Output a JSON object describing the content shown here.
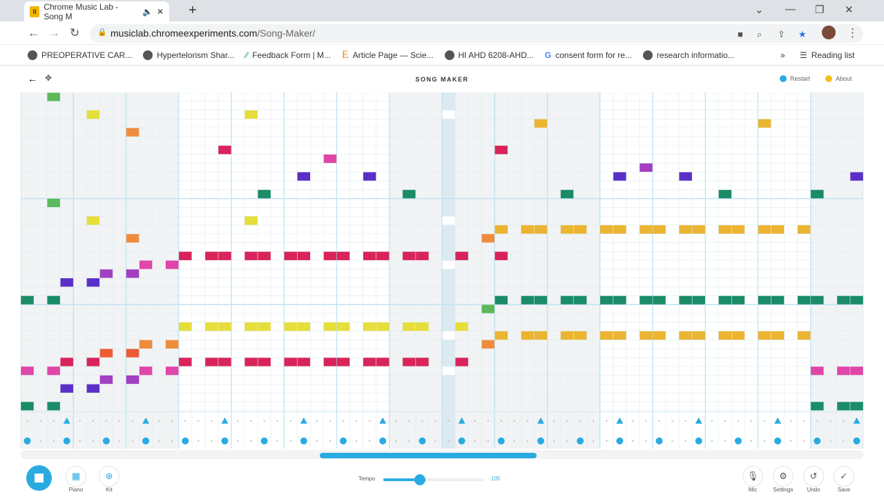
{
  "browser": {
    "tab_title": "Chrome Music Lab - Song M",
    "url_host": "musiclab.chromeexperiments.com",
    "url_path": "/Song-Maker/",
    "bookmarks": [
      "PREOPERATIVE CAR...",
      "Hypertelorism Shar...",
      "Feedback Form | M...",
      "Article Page — Scie...",
      "HI AHD 6208-AHD...",
      "consent form for re...",
      "research informatio..."
    ],
    "reading_list": "Reading list"
  },
  "app": {
    "title": "SONG MAKER",
    "restart": "Restart",
    "about": "About"
  },
  "grid": {
    "columns": 64,
    "rows": 36,
    "playhead_column": 32,
    "shaded_column_ranges": [
      [
        0,
        11
      ],
      [
        28,
        43
      ],
      [
        60,
        63
      ]
    ],
    "colors": {
      "lightgreen": "#5cb85a",
      "yellow": "#e6de3a",
      "gold": "#ebb431",
      "orange": "#ef8c3c",
      "orangered": "#ee5b35",
      "crimson": "#d8245a",
      "pink": "#e046a8",
      "purple": "#a23fc2",
      "indigo": "#5a2fc8",
      "teal": "#1b8c68"
    },
    "notes": [
      {
        "color": "lightgreen",
        "cells": [
          [
            2,
            0
          ],
          [
            2,
            12
          ],
          [
            35,
            24
          ]
        ]
      },
      {
        "color": "yellow",
        "cells": [
          [
            5,
            2
          ],
          [
            17,
            2
          ],
          [
            5,
            14
          ],
          [
            17,
            14
          ],
          [
            12,
            26
          ],
          [
            14,
            26
          ],
          [
            15,
            26
          ],
          [
            17,
            26
          ],
          [
            18,
            26
          ],
          [
            20,
            26
          ],
          [
            21,
            26
          ],
          [
            23,
            26
          ],
          [
            24,
            26
          ],
          [
            26,
            26
          ],
          [
            27,
            26
          ],
          [
            29,
            26
          ],
          [
            30,
            26
          ],
          [
            33,
            26
          ]
        ]
      },
      {
        "color": "gold",
        "cells": [
          [
            39,
            3
          ],
          [
            56,
            3
          ],
          [
            36,
            15
          ],
          [
            38,
            15
          ],
          [
            39,
            15
          ],
          [
            41,
            15
          ],
          [
            42,
            15
          ],
          [
            44,
            15
          ],
          [
            45,
            15
          ],
          [
            47,
            15
          ],
          [
            48,
            15
          ],
          [
            50,
            15
          ],
          [
            51,
            15
          ],
          [
            53,
            15
          ],
          [
            54,
            15
          ],
          [
            56,
            15
          ],
          [
            57,
            15
          ],
          [
            59,
            15
          ],
          [
            36,
            27
          ],
          [
            38,
            27
          ],
          [
            39,
            27
          ],
          [
            41,
            27
          ],
          [
            42,
            27
          ],
          [
            44,
            27
          ],
          [
            45,
            27
          ],
          [
            47,
            27
          ],
          [
            48,
            27
          ],
          [
            50,
            27
          ],
          [
            51,
            27
          ],
          [
            53,
            27
          ],
          [
            54,
            27
          ],
          [
            56,
            27
          ],
          [
            57,
            27
          ],
          [
            59,
            27
          ]
        ]
      },
      {
        "color": "orange",
        "cells": [
          [
            8,
            4
          ],
          [
            8,
            16
          ],
          [
            35,
            16
          ],
          [
            9,
            28
          ],
          [
            11,
            28
          ],
          [
            35,
            28
          ]
        ]
      },
      {
        "color": "orangered",
        "cells": [
          [
            6,
            29
          ],
          [
            8,
            29
          ]
        ]
      },
      {
        "color": "crimson",
        "cells": [
          [
            15,
            6
          ],
          [
            36,
            6
          ],
          [
            12,
            18
          ],
          [
            14,
            18
          ],
          [
            15,
            18
          ],
          [
            17,
            18
          ],
          [
            18,
            18
          ],
          [
            20,
            18
          ],
          [
            21,
            18
          ],
          [
            23,
            18
          ],
          [
            24,
            18
          ],
          [
            26,
            18
          ],
          [
            27,
            18
          ],
          [
            29,
            18
          ],
          [
            30,
            18
          ],
          [
            33,
            18
          ],
          [
            36,
            18
          ],
          [
            3,
            30
          ],
          [
            5,
            30
          ],
          [
            12,
            30
          ],
          [
            14,
            30
          ],
          [
            15,
            30
          ],
          [
            17,
            30
          ],
          [
            18,
            30
          ],
          [
            20,
            30
          ],
          [
            21,
            30
          ],
          [
            23,
            30
          ],
          [
            24,
            30
          ],
          [
            26,
            30
          ],
          [
            27,
            30
          ],
          [
            29,
            30
          ],
          [
            30,
            30
          ],
          [
            33,
            30
          ]
        ]
      },
      {
        "color": "pink",
        "cells": [
          [
            23,
            7
          ],
          [
            9,
            19
          ],
          [
            11,
            19
          ],
          [
            0,
            31
          ],
          [
            2,
            31
          ],
          [
            9,
            31
          ],
          [
            11,
            31
          ],
          [
            60,
            31
          ],
          [
            62,
            31
          ],
          [
            63,
            31
          ]
        ]
      },
      {
        "color": "purple",
        "cells": [
          [
            47,
            8
          ],
          [
            6,
            20
          ],
          [
            8,
            20
          ],
          [
            6,
            32
          ],
          [
            8,
            32
          ]
        ]
      },
      {
        "color": "indigo",
        "cells": [
          [
            21,
            9
          ],
          [
            26,
            9
          ],
          [
            45,
            9
          ],
          [
            50,
            9
          ],
          [
            63,
            9
          ],
          [
            3,
            21
          ],
          [
            5,
            21
          ],
          [
            3,
            33
          ],
          [
            5,
            33
          ]
        ]
      },
      {
        "color": "teal",
        "cells": [
          [
            18,
            11
          ],
          [
            29,
            11
          ],
          [
            41,
            11
          ],
          [
            53,
            11
          ],
          [
            60,
            11
          ],
          [
            0,
            23
          ],
          [
            2,
            23
          ],
          [
            36,
            23
          ],
          [
            38,
            23
          ],
          [
            39,
            23
          ],
          [
            41,
            23
          ],
          [
            42,
            23
          ],
          [
            44,
            23
          ],
          [
            45,
            23
          ],
          [
            47,
            23
          ],
          [
            48,
            23
          ],
          [
            50,
            23
          ],
          [
            51,
            23
          ],
          [
            53,
            23
          ],
          [
            54,
            23
          ],
          [
            56,
            23
          ],
          [
            57,
            23
          ],
          [
            59,
            23
          ],
          [
            60,
            23
          ],
          [
            62,
            23
          ],
          [
            63,
            23
          ],
          [
            0,
            35
          ],
          [
            2,
            35
          ],
          [
            60,
            35
          ],
          [
            62,
            35
          ],
          [
            63,
            35
          ]
        ]
      }
    ],
    "playing_rows": [
      2,
      14,
      19,
      27,
      31
    ],
    "percussion": {
      "triangle_columns": [
        3,
        9,
        15,
        21,
        27,
        33,
        39,
        45,
        51,
        57,
        63
      ],
      "circle_columns": [
        0,
        3,
        6,
        9,
        12,
        15,
        18,
        21,
        24,
        27,
        30,
        33,
        36,
        39,
        42,
        45,
        48,
        51,
        54,
        57,
        60,
        63
      ],
      "color": "#29abe2"
    }
  },
  "controls": {
    "piano": "Piano",
    "kit": "Kit",
    "tempo_label": "Tempo",
    "tempo": 105,
    "tempo_min": 50,
    "tempo_max": 200,
    "mic": "Mic",
    "settings": "Settings",
    "undo": "Undo",
    "save": "Save"
  }
}
